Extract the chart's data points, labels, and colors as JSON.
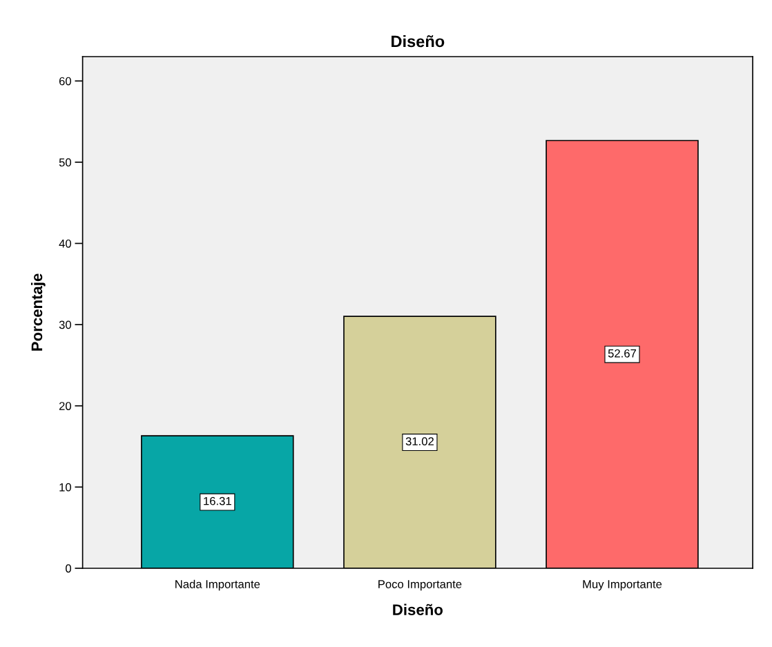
{
  "chart_data": {
    "type": "bar",
    "title": "Diseño",
    "xlabel": "Diseño",
    "ylabel": "Porcentaje",
    "categories": [
      "Nada Importante",
      "Poco Importante",
      "Muy Importante"
    ],
    "values": [
      16.31,
      31.02,
      52.67
    ],
    "colors": [
      "#07a6a6",
      "#d5d09a",
      "#fe6a6a"
    ],
    "ylim": [
      0,
      63
    ],
    "yticks": [
      0,
      10,
      20,
      30,
      40,
      50,
      60
    ],
    "data_labels": true,
    "grid": false
  }
}
